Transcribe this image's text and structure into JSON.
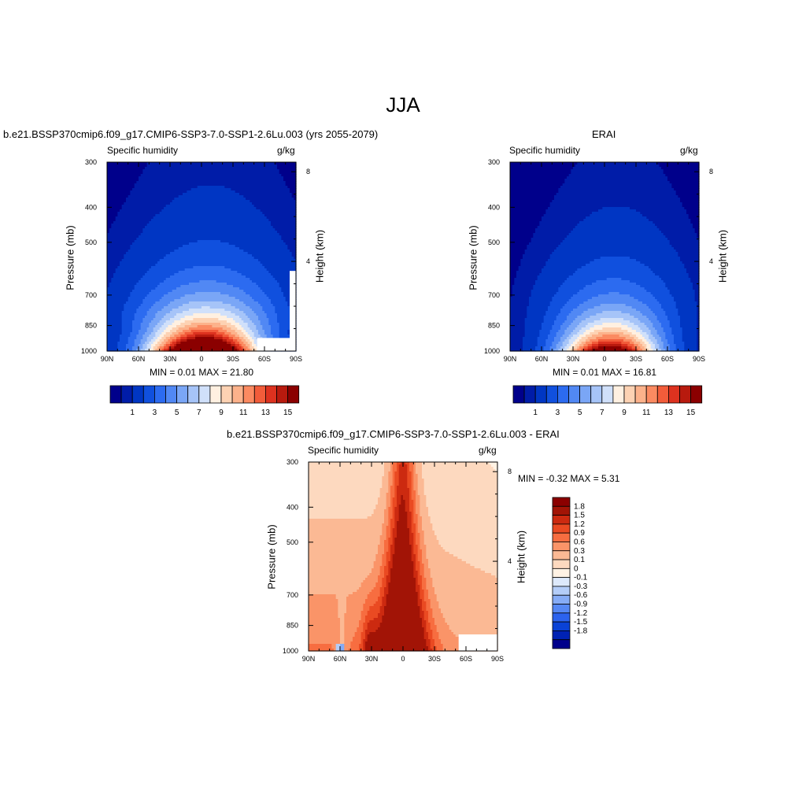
{
  "main_title": "JJA",
  "palettes": {
    "humidity": [
      "#00008b",
      "#001ca8",
      "#0036c3",
      "#1050de",
      "#2c6bf0",
      "#5188f4",
      "#7aa6f6",
      "#a6c4f8",
      "#d0e0fa",
      "#fff0e1",
      "#fdd2b3",
      "#fcb28b",
      "#fb8a61",
      "#f25c3a",
      "#dd321f",
      "#b81a0e",
      "#8b0000"
    ],
    "difference": [
      "#00008b",
      "#0022b4",
      "#0a42d6",
      "#2c63ee",
      "#5688f4",
      "#86acf6",
      "#b4cdf8",
      "#dde9fb",
      "#fff2e4",
      "#fdd9bf",
      "#fbb994",
      "#fa9468",
      "#f76d40",
      "#ea4a22",
      "#cc2a10",
      "#a21406",
      "#8b0000"
    ]
  },
  "panels": [
    {
      "title": "b.e21.BSSP370cmip6.f09_g17.CMIP6-SSP3-7.0-SSP1-2.6Lu.003 (yrs 2055-2079)",
      "variable": "Specific humidity",
      "units": "g/kg",
      "stats": "MIN =   0.01  MAX =  21.80"
    },
    {
      "title": "ERAI",
      "variable": "Specific humidity",
      "units": "g/kg",
      "stats": "MIN =   0.01  MAX =  16.81"
    },
    {
      "title": "b.e21.BSSP370cmip6.f09_g17.CMIP6-SSP3-7.0-SSP1-2.6Lu.003 - ERAI",
      "variable": "Specific humidity",
      "units": "g/kg",
      "stats": "MIN = -0.32  MAX =   5.31"
    }
  ],
  "axes": {
    "x_ticks": [
      "90N",
      "60N",
      "30N",
      "0",
      "30S",
      "60S",
      "90S"
    ],
    "y_ticks": [
      "300",
      "400",
      "500",
      "700",
      "850",
      "1000"
    ],
    "ylabel": "Pressure (mb)",
    "right_ticks": [
      "8",
      "4"
    ],
    "right_label": "Height (km)"
  },
  "colorbars": {
    "humidity_labels": [
      "1",
      "3",
      "5",
      "7",
      "9",
      "11",
      "13",
      "15"
    ],
    "difference_labels": [
      "1.8",
      "1.5",
      "1.2",
      "0.9",
      "0.6",
      "0.3",
      "0.1",
      "0",
      "-0.1",
      "-0.3",
      "-0.6",
      "-0.9",
      "-1.2",
      "-1.5",
      "-1.8"
    ]
  },
  "chart_data": [
    {
      "type": "heatmap",
      "title": "b.e21.BSSP370cmip6.f09_g17.CMIP6-SSP3-7.0-SSP1-2.6Lu.003 (yrs 2055-2079)",
      "variable": "Specific humidity",
      "units": "g/kg",
      "xlabel": "",
      "ylabel": "Pressure (mb)",
      "x_range": [
        90,
        -90
      ],
      "y_range": [
        300,
        1000
      ],
      "y_scale": "log",
      "y_reversed": true,
      "levels": [
        0.5,
        1,
        2,
        3,
        4,
        5,
        6,
        7,
        8,
        9,
        10,
        11,
        12,
        13,
        14,
        15
      ],
      "min": 0.01,
      "max": 21.8,
      "surface_qmax": 21.8,
      "peak_lat": -2,
      "surface_halfwidth": 40,
      "spread_aloft": [
        0.9,
        1.0,
        1.2,
        1.35,
        1.45,
        1.5,
        1.5
      ],
      "missing": [
        {
          "lat": [
            -53,
            -90
          ],
          "p": [
            920,
            1000
          ]
        },
        {
          "lat": [
            -84,
            -90
          ],
          "p": [
            600,
            1000
          ]
        }
      ]
    },
    {
      "type": "heatmap",
      "title": "ERAI",
      "variable": "Specific humidity",
      "units": "g/kg",
      "xlabel": "",
      "ylabel": "Pressure (mb)",
      "x_range": [
        90,
        -90
      ],
      "y_range": [
        300,
        1000
      ],
      "y_scale": "log",
      "y_reversed": true,
      "levels": [
        0.5,
        1,
        2,
        3,
        4,
        5,
        6,
        7,
        8,
        9,
        10,
        11,
        12,
        13,
        14,
        15
      ],
      "min": 0.01,
      "max": 16.81,
      "surface_qmax": 16.81,
      "peak_lat": -5,
      "surface_halfwidth": 36,
      "spread_aloft": [
        0.9,
        1.0,
        1.15,
        1.3,
        1.4,
        1.45,
        1.45
      ],
      "missing": []
    },
    {
      "type": "heatmap",
      "title": "b.e21.BSSP370cmip6.f09_g17.CMIP6-SSP3-7.0-SSP1-2.6Lu.003 - ERAI",
      "variable": "Specific humidity",
      "units": "g/kg",
      "xlabel": "",
      "ylabel": "Pressure (mb)",
      "x_range": [
        90,
        -90
      ],
      "y_range": [
        300,
        1000
      ],
      "y_scale": "log",
      "y_reversed": true,
      "levels": [
        -1.8,
        -1.5,
        -1.2,
        -0.9,
        -0.6,
        -0.3,
        -0.1,
        0,
        0.1,
        0.3,
        0.6,
        0.9,
        1.2,
        1.5,
        1.8
      ],
      "min": -0.32,
      "max": 5.31,
      "peak_lat": 0,
      "max_lat": 3,
      "missing": [
        {
          "lat": [
            -53,
            -90
          ],
          "p": [
            900,
            1000
          ]
        }
      ]
    }
  ]
}
